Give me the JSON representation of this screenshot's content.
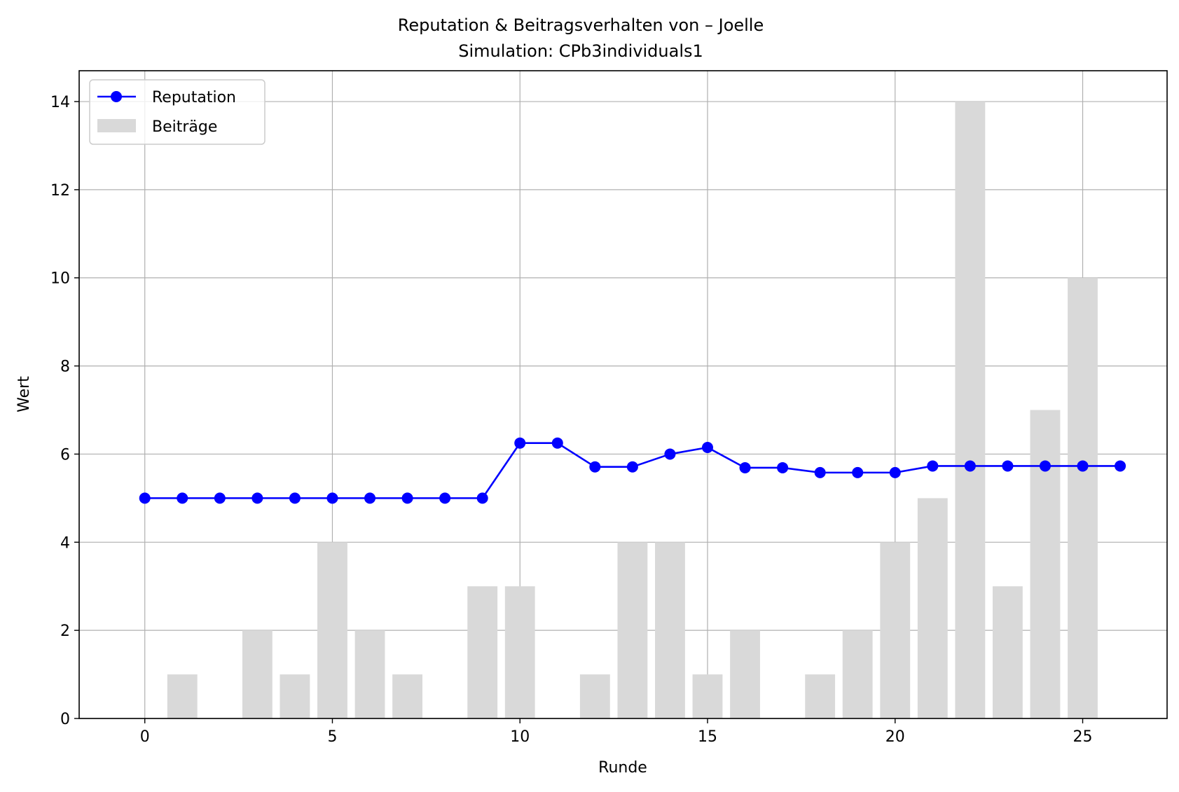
{
  "chart_data": {
    "type": "bar",
    "title": "Reputation & Beitragsverhalten von – Joelle",
    "subtitle": "Simulation: CPb3individuals1",
    "xlabel": "Runde",
    "ylabel": "Wert",
    "xlim": [
      -1.75,
      27.25
    ],
    "ylim": [
      0,
      14.7
    ],
    "xticks": [
      0,
      5,
      10,
      15,
      20,
      25
    ],
    "yticks": [
      0,
      2,
      4,
      6,
      8,
      10,
      12,
      14
    ],
    "grid": true,
    "legend_position": "upper left",
    "x": [
      0,
      1,
      2,
      3,
      4,
      5,
      6,
      7,
      8,
      9,
      10,
      11,
      12,
      13,
      14,
      15,
      16,
      17,
      18,
      19,
      20,
      21,
      22,
      23,
      24,
      25,
      26
    ],
    "series": [
      {
        "name": "Reputation",
        "kind": "line",
        "color": "#0000ff",
        "marker": "circle",
        "values": [
          5,
          5,
          5,
          5,
          5,
          5,
          5,
          5,
          5,
          5,
          6.25,
          6.25,
          5.71,
          5.71,
          6.0,
          6.15,
          5.69,
          5.69,
          5.58,
          5.58,
          5.58,
          5.73,
          5.73,
          5.73,
          5.73,
          5.73,
          5.73
        ]
      },
      {
        "name": "Beiträge",
        "kind": "bar",
        "color": "#d9d9d9",
        "values": [
          0,
          1,
          0,
          2,
          1,
          4,
          2,
          1,
          0,
          3,
          3,
          0,
          1,
          4,
          4,
          1,
          2,
          0,
          1,
          2,
          4,
          5,
          14,
          3,
          7,
          10,
          0
        ]
      }
    ]
  }
}
